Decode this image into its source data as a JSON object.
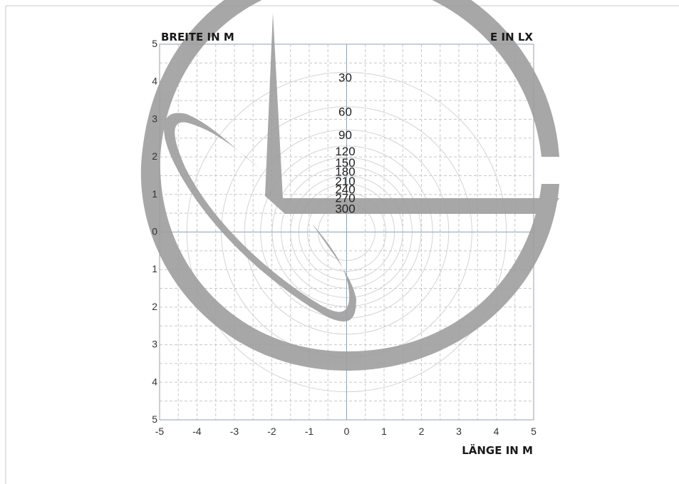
{
  "chart_data": {
    "type": "isolux",
    "title": "",
    "x_axis_title": "LÄNGE IN M",
    "y_axis_title": "BREITE IN M",
    "value_axis_title": "E IN LX",
    "x_ticks": [
      "-5",
      "-4",
      "-3",
      "-2",
      "-1",
      "0",
      "1",
      "2",
      "3",
      "4",
      "5"
    ],
    "y_ticks": [
      "5",
      "4",
      "3",
      "2",
      "1",
      "0",
      "1",
      "2",
      "3",
      "4",
      "5"
    ],
    "x_values": [
      -5,
      -4,
      -3,
      -2,
      -1,
      0,
      1,
      2,
      3,
      4,
      5
    ],
    "y_values": [
      5,
      4,
      3,
      2,
      1,
      0,
      -1,
      -2,
      -3,
      -4,
      -5
    ],
    "xlim": [
      -5,
      5
    ],
    "ylim": [
      -5,
      5
    ],
    "grid": true,
    "minor_grid_step": 0.5,
    "center": [
      0,
      0
    ],
    "isolux_lines": [
      {
        "label": "30",
        "radius_m": 4.27
      },
      {
        "label": "60",
        "radius_m": 3.35
      },
      {
        "label": "90",
        "radius_m": 2.73
      },
      {
        "label": "120",
        "radius_m": 2.3
      },
      {
        "label": "150",
        "radius_m": 1.99
      },
      {
        "label": "180",
        "radius_m": 1.75
      },
      {
        "label": "210",
        "radius_m": 1.5
      },
      {
        "label": "240",
        "radius_m": 1.28
      },
      {
        "label": "270",
        "radius_m": 1.05
      },
      {
        "label": "300",
        "radius_m": 0.76
      }
    ],
    "colors": {
      "grid": "#c8c8c8",
      "axes": "#8fa3b4",
      "isolux": "#d4d4d4",
      "watermark": "#9e9e9e"
    }
  }
}
